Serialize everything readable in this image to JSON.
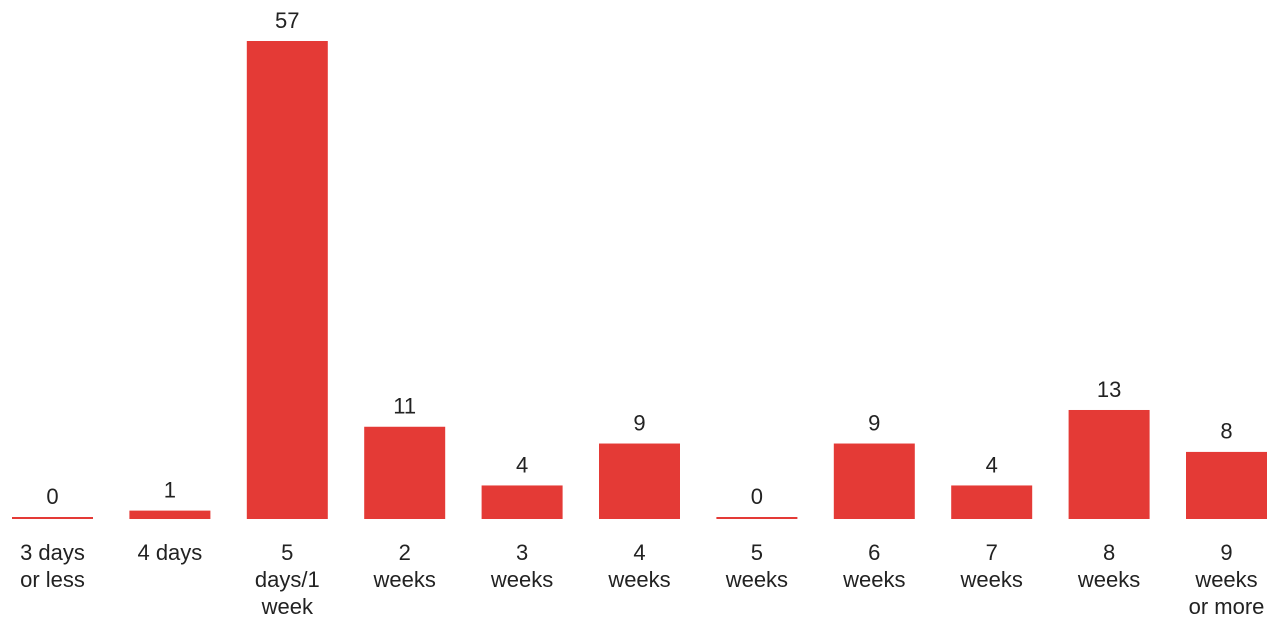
{
  "chart_data": {
    "type": "bar",
    "categories": [
      "3 days or less",
      "4 days",
      "5 days/1 week",
      "2 weeks",
      "3 weeks",
      "4 weeks",
      "5 weeks",
      "6 weeks",
      "7 weeks",
      "8 weeks",
      "9 weeks or more"
    ],
    "values": [
      0,
      1,
      57,
      11,
      4,
      9,
      0,
      9,
      4,
      13,
      8
    ],
    "color": "#e43a36"
  }
}
